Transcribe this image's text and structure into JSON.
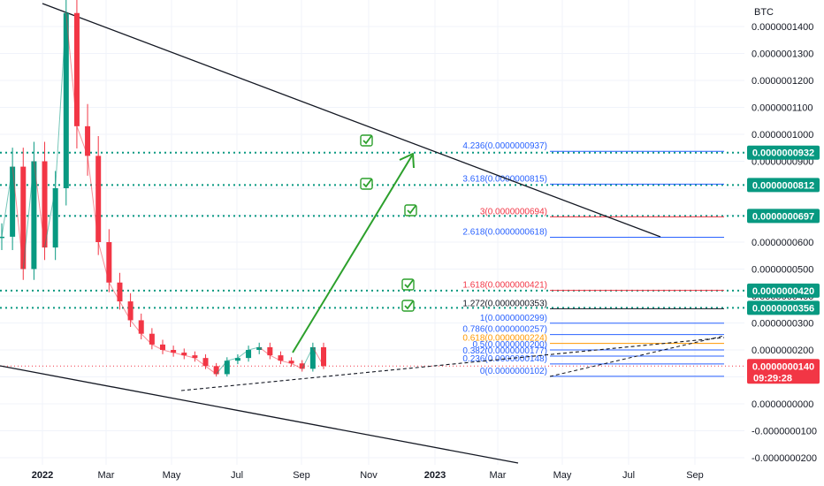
{
  "chart_data": {
    "type": "line",
    "symbol_unit": "BTC",
    "price_axis_ticks": [
      "0.0000001400",
      "0.0000001300",
      "0.0000001200",
      "0.0000001100",
      "0.0000001000",
      "0.0000000900",
      "0.0000000800",
      "0.0000000700",
      "0.0000000600",
      "0.0000000500",
      "0.0000000400",
      "0.0000000300",
      "0.0000000200",
      "0.0000000100",
      "0.0000000000",
      "-0.0000000100",
      "-0.0000000200"
    ],
    "time_axis_ticks": [
      {
        "label": "2022",
        "bold": true
      },
      {
        "label": "Mar",
        "bold": false
      },
      {
        "label": "May",
        "bold": false
      },
      {
        "label": "Jul",
        "bold": false
      },
      {
        "label": "Sep",
        "bold": false
      },
      {
        "label": "Nov",
        "bold": false
      },
      {
        "label": "2023",
        "bold": true
      },
      {
        "label": "Mar",
        "bold": false
      },
      {
        "label": "May",
        "bold": false
      },
      {
        "label": "Jul",
        "bold": false
      },
      {
        "label": "Sep",
        "bold": false
      }
    ],
    "ylim": [
      -2e-08,
      1.45e-07
    ],
    "series": [
      {
        "values": [
          6.2e-08,
          8.8e-08,
          5e-08,
          9e-08,
          5.8e-08,
          8e-08,
          1.45e-07,
          1.03e-07,
          9.2e-08,
          6e-08,
          4.5e-08,
          3.8e-08,
          3.1e-08,
          2.6e-08,
          2.2e-08,
          2e-08,
          1.9e-08,
          1.8e-08,
          1.7e-08,
          1.4e-08,
          1.1e-08,
          1.6e-08,
          1.7e-08,
          2e-08,
          2.1e-08,
          1.8e-08,
          1.6e-08,
          1.5e-08,
          1.3e-08,
          2.1e-08,
          1.4e-08
        ]
      }
    ],
    "price_badges": [
      {
        "text": "0.0000000932",
        "color": "#089981",
        "value": 9.32e-08
      },
      {
        "text": "0.0000000812",
        "color": "#089981",
        "value": 8.12e-08
      },
      {
        "text": "0.0000000697",
        "color": "#089981",
        "value": 6.97e-08
      },
      {
        "text": "0.0000000420",
        "color": "#089981",
        "value": 4.2e-08
      },
      {
        "text": "0.0000000356",
        "color": "#089981",
        "value": 3.56e-08
      }
    ],
    "current_price": {
      "text": "0.0000000140",
      "countdown": "09:29:28",
      "color": "#f23645",
      "value": 1.4e-08
    },
    "fib_levels": [
      {
        "text": "4.236(0.0000000937)",
        "value": 9.37e-08,
        "color": "#2962ff"
      },
      {
        "text": "3.618(0.0000000815)",
        "value": 8.15e-08,
        "color": "#2962ff"
      },
      {
        "text": "3(0.0000000694)",
        "value": 6.94e-08,
        "color": "#f23645"
      },
      {
        "text": "2.618(0.0000000618)",
        "value": 6.18e-08,
        "color": "#2962ff"
      },
      {
        "text": "1.618(0.0000000421)",
        "value": 4.21e-08,
        "color": "#f23645"
      },
      {
        "text": "1.272(0.0000000353)",
        "value": 3.53e-08,
        "color": "#131722"
      },
      {
        "text": "1(0.0000000299)",
        "value": 2.99e-08,
        "color": "#2962ff"
      },
      {
        "text": "0.786(0.0000000257)",
        "value": 2.57e-08,
        "color": "#2962ff"
      },
      {
        "text": "0.618(0.0000000224)",
        "value": 2.24e-08,
        "color": "#ff9800"
      },
      {
        "text": "0.5(0.0000000200)",
        "value": 2e-08,
        "color": "#2962ff"
      },
      {
        "text": "0.382(0.0000000177)",
        "value": 1.77e-08,
        "color": "#2962ff"
      },
      {
        "text": "0.236(0.0000000148)",
        "value": 1.48e-08,
        "color": "#2962ff"
      },
      {
        "text": "0(0.0000000102)",
        "value": 1.02e-08,
        "color": "#2962ff"
      }
    ],
    "horizontal_levels": [
      9.32e-08,
      8.12e-08,
      6.97e-08,
      4.2e-08,
      3.56e-08
    ],
    "grid": true,
    "colors": {
      "up": "#089981",
      "down": "#f23645",
      "arrow": "#2ca02c",
      "trendline": "#131722"
    }
  }
}
